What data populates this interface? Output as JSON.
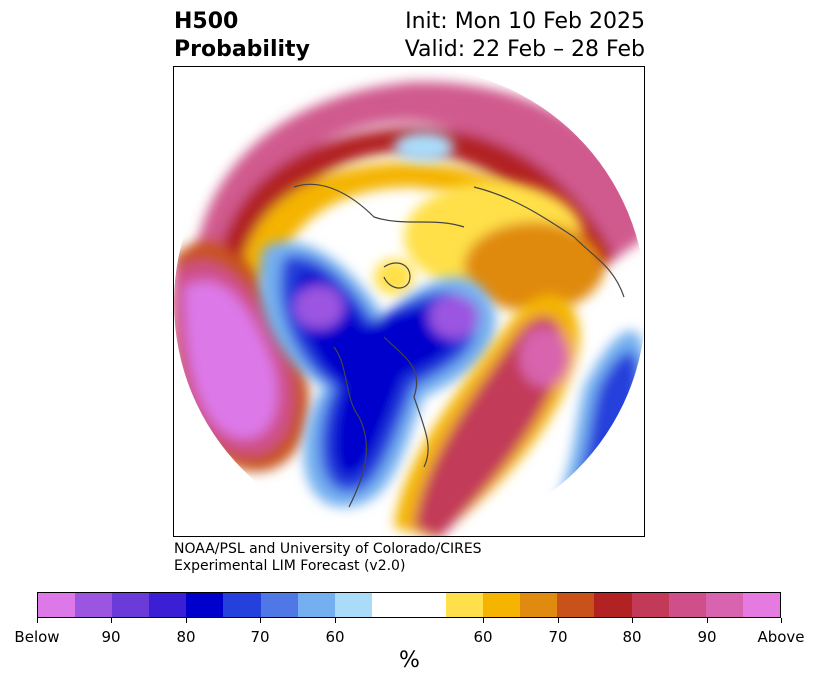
{
  "title": {
    "field": "H500",
    "product": "Probability",
    "init": "Init: Mon 10 Feb 2025",
    "valid": "Valid: 22 Feb – 28 Feb"
  },
  "credit": {
    "line1": "NOAA/PSL and University of Colorado/CIRES",
    "line2": "Experimental LIM Forecast (v2.0)"
  },
  "colorbar": {
    "unit_label": "%",
    "colors": [
      "#dc78e8",
      "#9b55e0",
      "#6a3bd8",
      "#3a1fd4",
      "#0000cc",
      "#2540dc",
      "#4f78e6",
      "#74b0ef",
      "#aadcfa",
      "#ffffff",
      "#ffe04a",
      "#f4b400",
      "#e08a10",
      "#c8521a",
      "#b22222",
      "#c23a58",
      "#cf4f8a",
      "#d863ae",
      "#e57ae0"
    ],
    "tick_labels": [
      "Below",
      "90",
      "80",
      "70",
      "60",
      "60",
      "70",
      "80",
      "90",
      "Above"
    ]
  }
}
